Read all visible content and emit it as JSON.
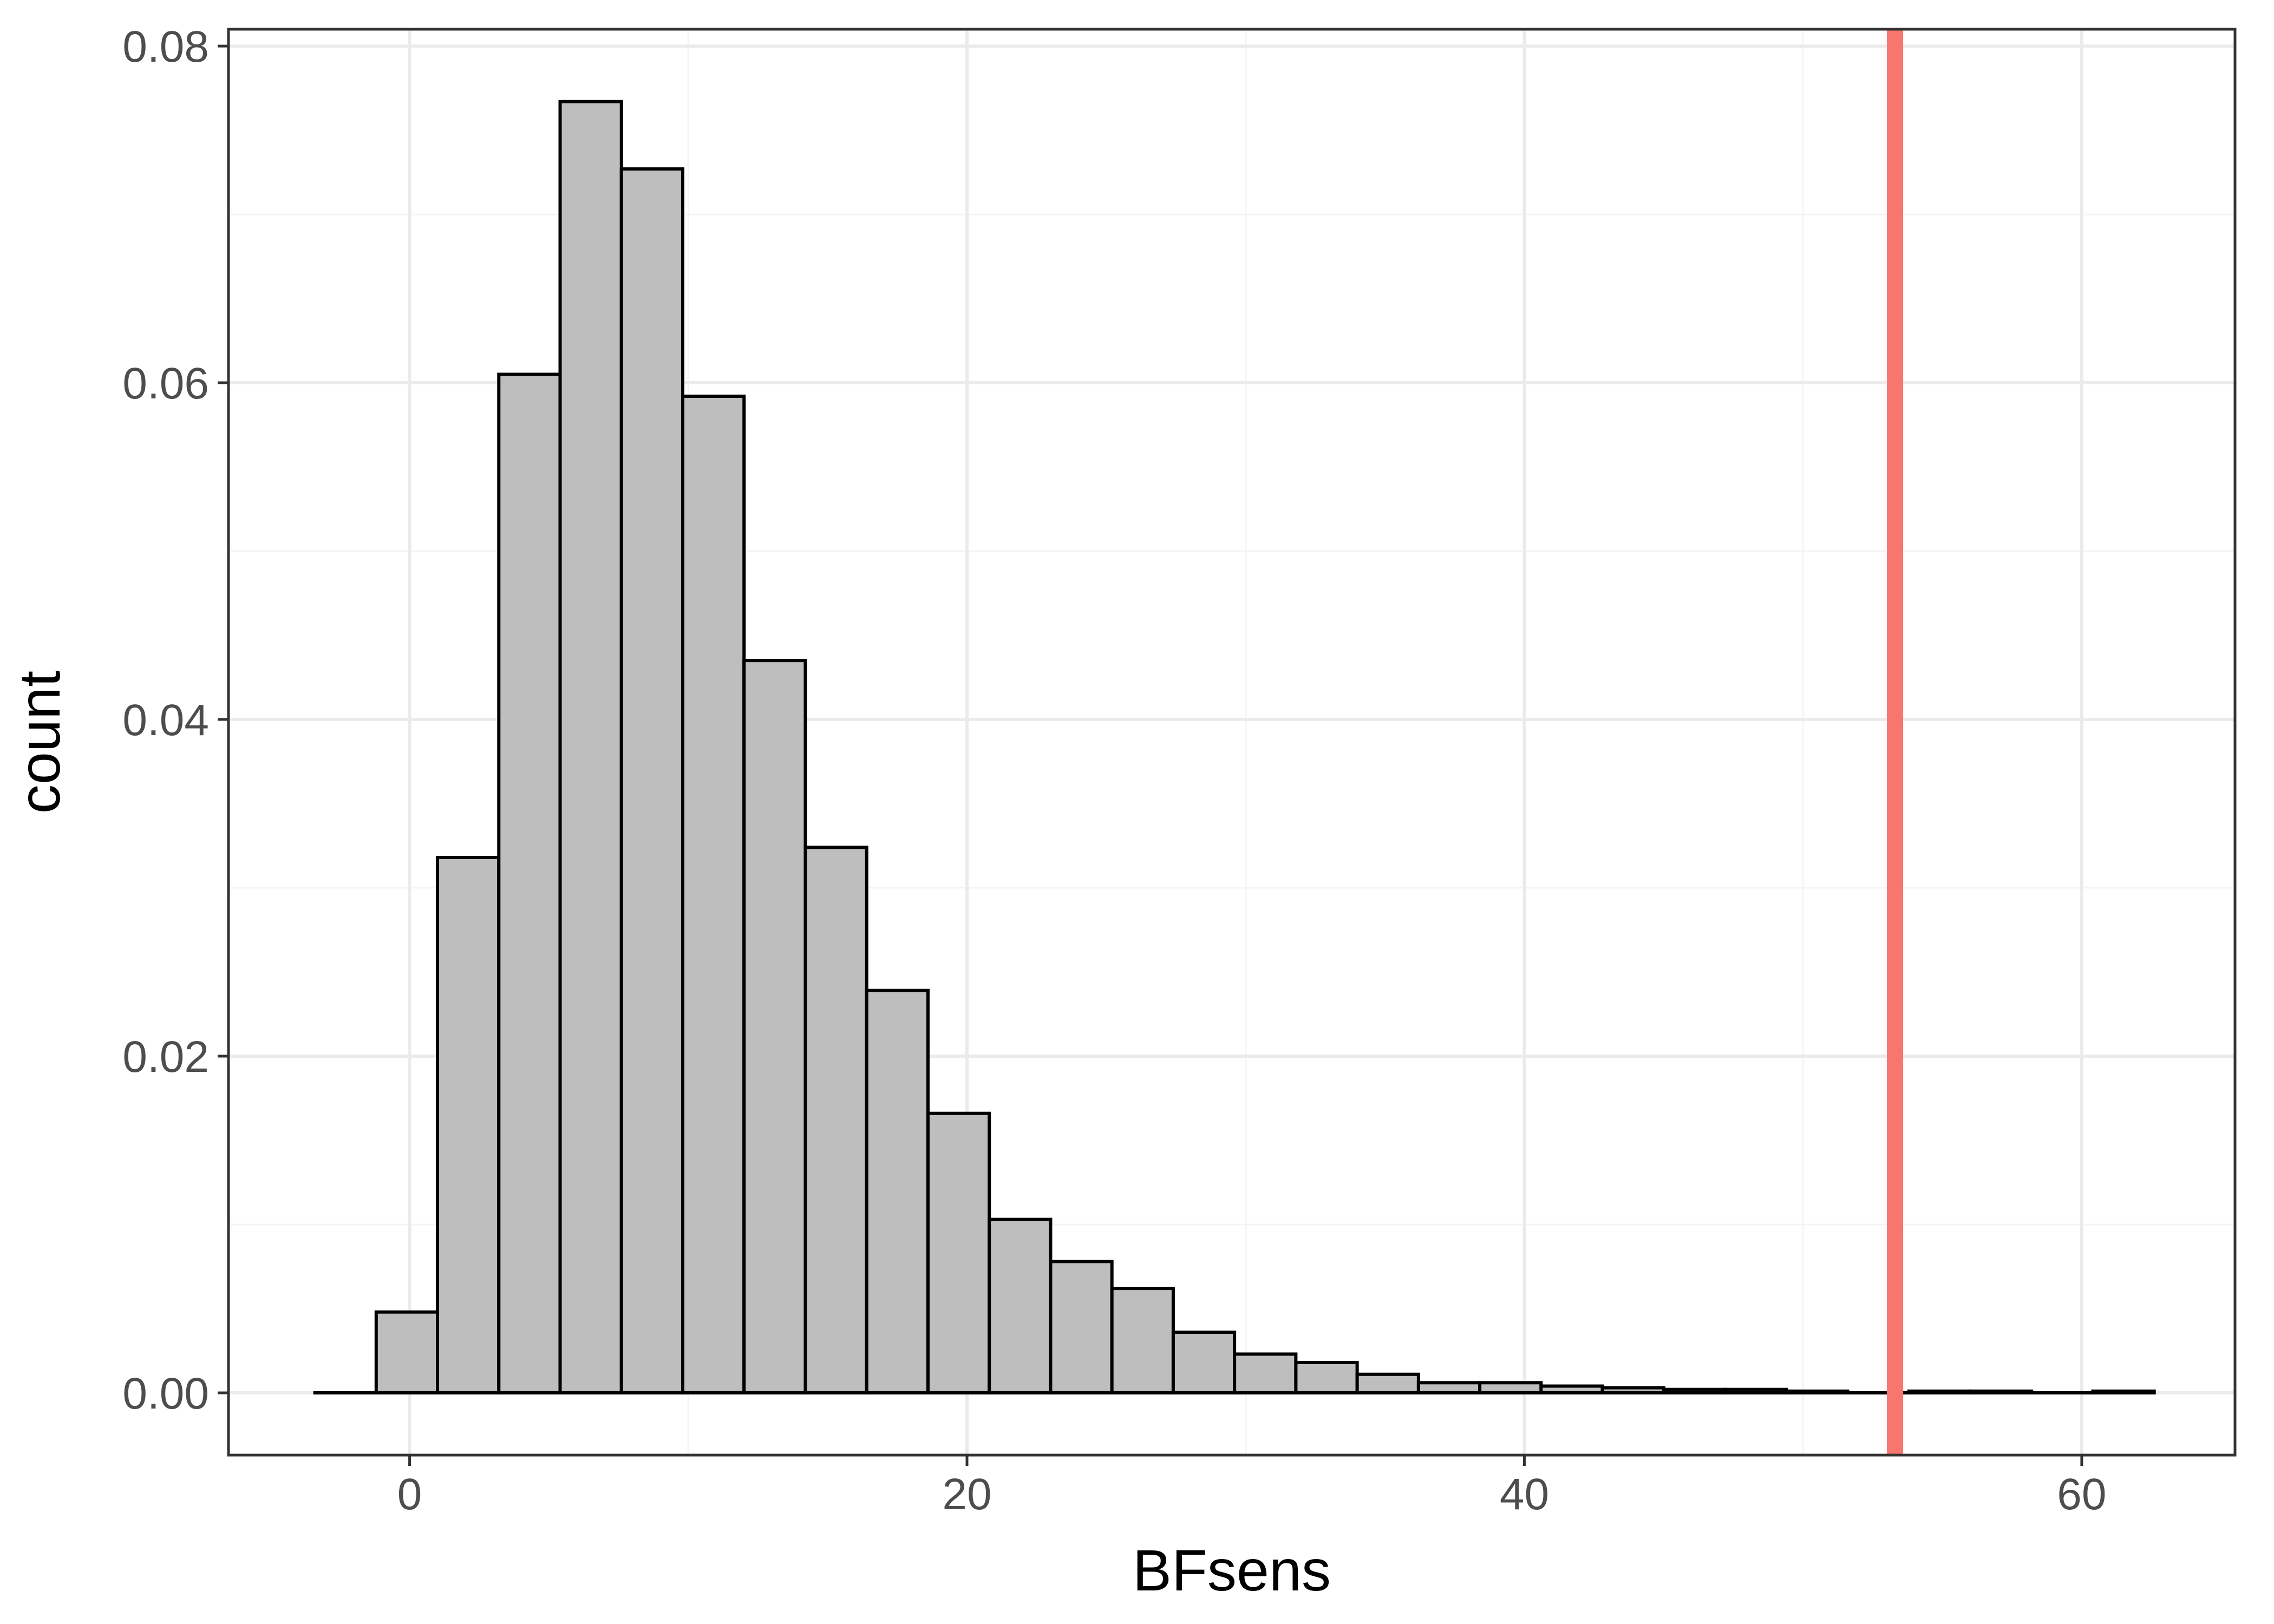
{
  "chart_data": {
    "type": "bar",
    "subtype": "histogram",
    "title": "",
    "xlabel": "BFsens",
    "ylabel": "count",
    "xlim": [
      -6.5,
      65.5
    ],
    "ylim": [
      -0.0037,
      0.081
    ],
    "x_ticks": [
      0,
      20,
      40,
      60
    ],
    "x_tick_labels": [
      "0",
      "20",
      "40",
      "60"
    ],
    "y_ticks": [
      0.0,
      0.02,
      0.04,
      0.06,
      0.08
    ],
    "y_tick_labels": [
      "0.00",
      "0.02",
      "0.04",
      "0.06",
      "0.08"
    ],
    "grid": true,
    "bin_width": 2.2,
    "bins": [
      {
        "start": -3.4,
        "end": -1.2,
        "value": 0.0
      },
      {
        "start": -1.2,
        "end": 1.0,
        "value": 0.0048
      },
      {
        "start": 1.0,
        "end": 3.2,
        "value": 0.0318
      },
      {
        "start": 3.2,
        "end": 5.4,
        "value": 0.0605
      },
      {
        "start": 5.4,
        "end": 7.6,
        "value": 0.0767
      },
      {
        "start": 7.6,
        "end": 9.8,
        "value": 0.0727
      },
      {
        "start": 9.8,
        "end": 12.0,
        "value": 0.0592
      },
      {
        "start": 12.0,
        "end": 14.2,
        "value": 0.0435
      },
      {
        "start": 14.2,
        "end": 16.4,
        "value": 0.0324
      },
      {
        "start": 16.4,
        "end": 18.6,
        "value": 0.0239
      },
      {
        "start": 18.6,
        "end": 20.8,
        "value": 0.0166
      },
      {
        "start": 20.8,
        "end": 23.0,
        "value": 0.0103
      },
      {
        "start": 23.0,
        "end": 25.2,
        "value": 0.0078
      },
      {
        "start": 25.2,
        "end": 27.4,
        "value": 0.0062
      },
      {
        "start": 27.4,
        "end": 29.6,
        "value": 0.0036
      },
      {
        "start": 29.6,
        "end": 31.8,
        "value": 0.0023
      },
      {
        "start": 31.8,
        "end": 34.0,
        "value": 0.0018
      },
      {
        "start": 34.0,
        "end": 36.2,
        "value": 0.0011
      },
      {
        "start": 36.2,
        "end": 38.4,
        "value": 0.0006
      },
      {
        "start": 38.4,
        "end": 40.6,
        "value": 0.0006
      },
      {
        "start": 40.6,
        "end": 42.8,
        "value": 0.0004
      },
      {
        "start": 42.8,
        "end": 45.0,
        "value": 0.0003
      },
      {
        "start": 45.0,
        "end": 47.2,
        "value": 0.0002
      },
      {
        "start": 47.2,
        "end": 49.4,
        "value": 0.0002
      },
      {
        "start": 49.4,
        "end": 51.6,
        "value": 0.0001
      },
      {
        "start": 51.6,
        "end": 53.8,
        "value": 0.0
      },
      {
        "start": 53.8,
        "end": 56.0,
        "value": 0.0001
      },
      {
        "start": 56.0,
        "end": 58.2,
        "value": 0.0001
      },
      {
        "start": 58.2,
        "end": 60.4,
        "value": 0.0
      },
      {
        "start": 60.4,
        "end": 62.6,
        "value": 0.0001
      }
    ],
    "reference_line": {
      "x": 53.3,
      "color": "#F8766D"
    },
    "colors": {
      "bar_fill": "#bebebe",
      "bar_stroke": "#000000",
      "grid_major": "#ebebeb",
      "grid_minor": "#f4f4f4",
      "panel_border": "#333333"
    }
  }
}
